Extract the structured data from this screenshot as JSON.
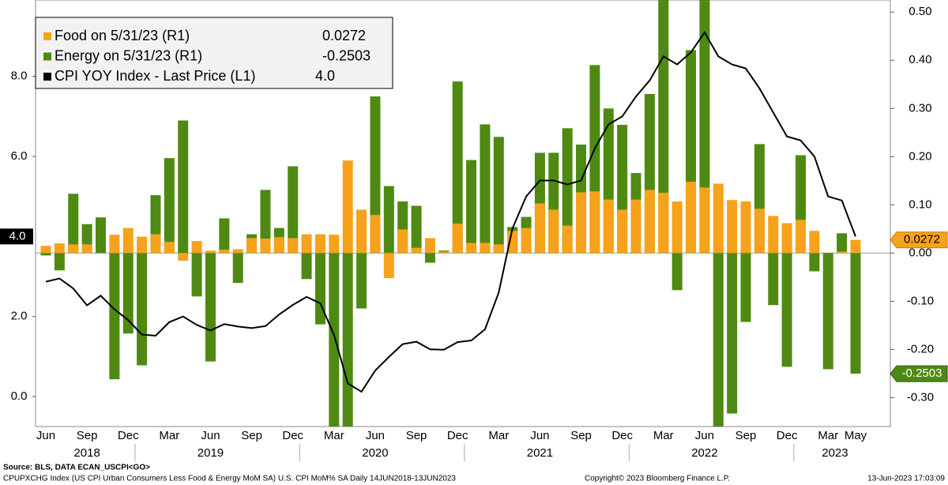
{
  "chart_data": {
    "type": "bar",
    "categories": [
      "Jun",
      null,
      null,
      "Sep",
      null,
      null,
      "Dec",
      null,
      null,
      "Mar",
      null,
      null,
      "Jun",
      null,
      null,
      "Sep",
      null,
      null,
      "Dec",
      null,
      null,
      "Mar",
      null,
      null,
      "Jun",
      null,
      null,
      "Sep",
      null,
      null,
      "Dec",
      null,
      null,
      "Mar",
      null,
      null,
      "Jun",
      null,
      null,
      "Sep",
      null,
      null,
      "Dec",
      null,
      null,
      "Mar",
      null,
      null,
      "Jun",
      null,
      null,
      "Sep",
      null,
      null,
      "Dec",
      null,
      null,
      "Mar",
      null,
      "May"
    ],
    "years": [
      "2018",
      "2019",
      "2020",
      "2021",
      "2022",
      "2023"
    ],
    "series": [
      {
        "name": "Energy on 5/31/23 (R1)",
        "color": "#4e8a12",
        "axis": "y2",
        "type": "bar",
        "values": [
          -0.005,
          -0.036,
          0.123,
          0.06,
          0.074,
          -0.262,
          -0.167,
          -0.233,
          0.12,
          0.197,
          0.275,
          -0.09,
          -0.225,
          0.072,
          -0.062,
          0.039,
          0.131,
          0.052,
          0.18,
          -0.054,
          -0.148,
          -0.38,
          -0.39,
          -0.115,
          0.325,
          0.139,
          0.107,
          0.098,
          -0.02,
          0.005,
          0.356,
          0.193,
          0.267,
          0.241,
          0.054,
          0.075,
          0.208,
          0.208,
          0.259,
          0.225,
          0.39,
          0.3,
          0.266,
          0.166,
          0.33,
          0.56,
          -0.077,
          0.421,
          0.56,
          -0.37,
          -0.333,
          -0.143,
          0.226,
          -0.108,
          -0.236,
          0.203,
          -0.038,
          -0.241,
          0.041,
          -0.2503
        ]
      },
      {
        "name": "Food on 5/31/23 (R1)",
        "color": "#f7a21b",
        "axis": "y2",
        "type": "bar",
        "values": [
          0.015,
          0.02,
          0.018,
          0.018,
          0.0,
          0.038,
          0.052,
          0.034,
          0.039,
          0.023,
          -0.016,
          0.025,
          0.005,
          0.007,
          0.008,
          0.031,
          0.03,
          0.033,
          0.031,
          0.039,
          0.039,
          0.038,
          0.192,
          0.09,
          0.079,
          -0.052,
          0.049,
          0.011,
          0.031,
          0.003,
          0.061,
          0.021,
          0.021,
          0.018,
          0.046,
          0.052,
          0.103,
          0.09,
          0.057,
          0.126,
          0.128,
          0.111,
          0.09,
          0.111,
          0.131,
          0.125,
          0.107,
          0.148,
          0.136,
          0.144,
          0.11,
          0.107,
          0.092,
          0.077,
          0.062,
          0.069,
          0.046,
          0.0,
          0.003,
          0.0272
        ]
      },
      {
        "name": "CPI YOY Index - Last Price (L1)",
        "color": "#000000",
        "axis": "y",
        "type": "line",
        "last_label": "4.0",
        "values": [
          2.87,
          2.95,
          2.7,
          2.28,
          2.52,
          2.18,
          1.91,
          1.55,
          1.52,
          1.86,
          2.0,
          1.79,
          1.65,
          1.81,
          1.75,
          1.71,
          1.76,
          2.05,
          2.29,
          2.49,
          2.33,
          1.54,
          0.33,
          0.12,
          0.65,
          0.99,
          1.31,
          1.37,
          1.18,
          1.17,
          1.36,
          1.4,
          1.68,
          2.6,
          4.2,
          5.0,
          5.4,
          5.4,
          5.3,
          5.4,
          6.2,
          6.8,
          7.0,
          7.5,
          7.9,
          8.5,
          8.3,
          8.6,
          9.1,
          8.5,
          8.3,
          8.2,
          7.7,
          7.1,
          6.5,
          6.4,
          6.0,
          5.0,
          4.9,
          4.0
        ]
      }
    ],
    "ylim": [
      -0.75,
      9.91
    ],
    "yticks": [
      {
        "value": 0,
        "label": "0.0"
      },
      {
        "value": 2,
        "label": "2.0"
      },
      {
        "value": 6,
        "label": "6.0"
      },
      {
        "value": 8,
        "label": "8.0"
      }
    ],
    "y2lim": [
      -0.36,
      0.525
    ],
    "y2ticks": [
      {
        "value": -0.3,
        "label": "-0.30"
      },
      {
        "value": -0.2,
        "label": "-0.20"
      },
      {
        "value": -0.1,
        "label": "-0.10"
      },
      {
        "value": 0,
        "label": "0.00"
      },
      {
        "value": 0.1,
        "label": "0.10"
      },
      {
        "value": 0.2,
        "label": "0.20"
      },
      {
        "value": 0.3,
        "label": "0.30"
      },
      {
        "value": 0.4,
        "label": "0.40"
      },
      {
        "value": 0.5,
        "label": "0.50"
      }
    ],
    "legend": "upper left",
    "source": "Source: BLS, DATA ECAN_USCPI<GO>",
    "footer": "CPUPXCHG Index (US CPI Urban Consumers Less Food & Energy MoM SA) U.S. CPI MoM% SA  Daily 14JUN2018-13JUN2023",
    "copyright": "Copyright© 2023 Bloomberg Finance L.P.",
    "timestamp": "13-Jun-2023 17:03:09"
  }
}
